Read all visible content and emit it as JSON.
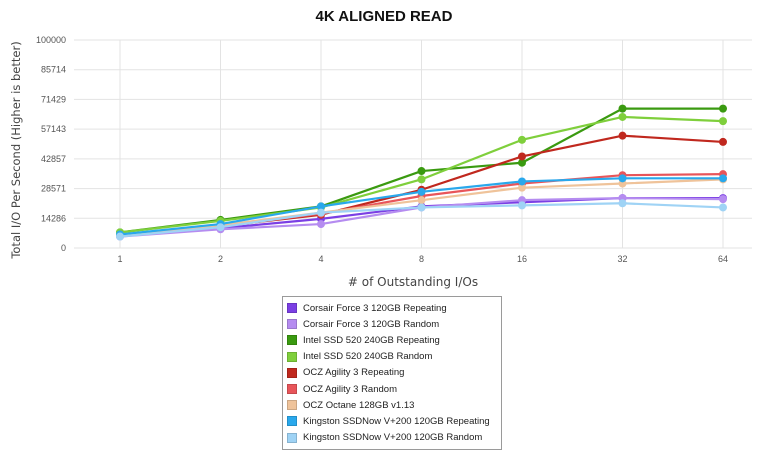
{
  "chart_data": {
    "type": "line",
    "title": "4K ALIGNED READ",
    "xlabel": "# of Outstanding I/Os",
    "ylabel": "Total I/O Per Second (Higher is better)",
    "x": [
      "1",
      "2",
      "4",
      "8",
      "16",
      "32",
      "64"
    ],
    "yticks": [
      "0",
      "14286",
      "28571",
      "42857",
      "57143",
      "71429",
      "85714",
      "100000"
    ],
    "ylim": [
      0,
      100000
    ],
    "grid": true,
    "legend_position": "bottom",
    "series": [
      {
        "name": "Corsair Force 3 120GB Repeating",
        "color": "#7b3fe4",
        "values": [
          6000,
          9500,
          14000,
          20000,
          22000,
          24000,
          24000
        ]
      },
      {
        "name": "Corsair Force 3 120GB Random",
        "color": "#b58cf0",
        "values": [
          5500,
          9000,
          11500,
          19500,
          23000,
          24000,
          23500
        ]
      },
      {
        "name": "Intel SSD 520 240GB Repeating",
        "color": "#3a9a10",
        "values": [
          7500,
          13500,
          20000,
          37000,
          41000,
          67000,
          67000
        ]
      },
      {
        "name": "Intel SSD 520 240GB Random",
        "color": "#7fcf3c",
        "values": [
          7500,
          13000,
          19500,
          33000,
          52000,
          63000,
          61000
        ]
      },
      {
        "name": "OCZ Agility 3 Repeating",
        "color": "#c0281e",
        "values": [
          6000,
          10500,
          16000,
          28000,
          44000,
          54000,
          51000
        ]
      },
      {
        "name": "OCZ Agility 3 Random",
        "color": "#e8555a",
        "values": [
          6000,
          10500,
          16500,
          25000,
          31000,
          35000,
          35500
        ]
      },
      {
        "name": "OCZ Octane 128GB v1.13",
        "color": "#efc39a",
        "values": [
          6000,
          11000,
          17000,
          23000,
          29000,
          31000,
          33000
        ]
      },
      {
        "name": "Kingston SSDNow V+200 120GB Repeating",
        "color": "#29a8ec",
        "values": [
          6500,
          11500,
          20000,
          27000,
          32000,
          33500,
          33500
        ]
      },
      {
        "name": "Kingston SSDNow V+200 120GB Random",
        "color": "#9fd3f5",
        "values": [
          5500,
          10000,
          17000,
          19500,
          20500,
          21500,
          19500
        ]
      }
    ]
  }
}
